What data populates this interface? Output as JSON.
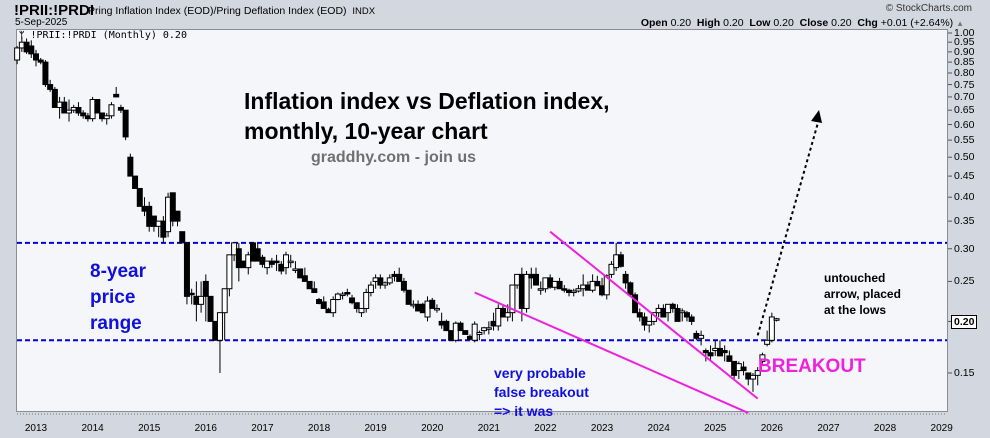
{
  "header": {
    "symbol": "!PRII:!PRDI",
    "name": "Pring Inflation Index (EOD)/Pring Deflation Index (EOD)",
    "exchange": "INDX",
    "date": "5-Sep-2025",
    "copyright": "© StockCharts.com",
    "ohlc": {
      "open_label": "Open",
      "open": "0.20",
      "high_label": "High",
      "high": "0.20",
      "low_label": "Low",
      "low": "0.20",
      "close_label": "Close",
      "close": "0.20",
      "chg_label": "Chg",
      "chg": "+0.01 (+2.64%)",
      "chg_icon": "up-triangle-icon"
    }
  },
  "legend": {
    "icon": "candlestick-icon",
    "text": "!PRII:!PRDI (Monthly) 0.20"
  },
  "annotations": {
    "title_line1": "Inflation index vs Deflation index,",
    "title_line2": "monthly, 10-year chart",
    "subtitle": "graddhy.com - join us",
    "range_label_1": "8-year",
    "range_label_2": "price",
    "range_label_3": "range",
    "false_breakout_1": "very probable",
    "false_breakout_2": "false breakout",
    "false_breakout_3": "=> it was",
    "breakout": "BREAKOUT",
    "arrow_note_1": "untouched",
    "arrow_note_2": "arrow, placed",
    "arrow_note_3": "at the lows"
  },
  "colors": {
    "range_line": "#0000dd",
    "range_text": "#1010dd",
    "wedge": "#ee22dd",
    "breakout_text": "#ee22dd",
    "arrow": "#000000",
    "subtitle": "#707070"
  },
  "price_tag": "0.20",
  "chart_data": {
    "type": "candlestick",
    "title": "Inflation index vs Deflation index, monthly, 10-year chart",
    "series_name": "!PRII:!PRDI (Monthly)",
    "scale": "log",
    "ylim": [
      0.14,
      1.0
    ],
    "y_ticks": [
      "1.00",
      "0.95",
      "0.90",
      "0.85",
      "0.80",
      "0.75",
      "0.70",
      "0.65",
      "0.60",
      "0.55",
      "0.50",
      "0.45",
      "0.40",
      "0.35",
      "0.30",
      "0.25",
      "0.20",
      "0.15"
    ],
    "x_ticks": [
      "2013",
      "2014",
      "2015",
      "2016",
      "2017",
      "2018",
      "2019",
      "2020",
      "2021",
      "2022",
      "2023",
      "2024",
      "2025",
      "2026",
      "2027",
      "2028",
      "2029"
    ],
    "horizontal_lines": [
      0.31,
      0.18
    ],
    "wedge_upper": [
      [
        "2022-02",
        0.33
      ],
      [
        "2025-10",
        0.13
      ]
    ],
    "wedge_lower": [
      [
        "2020-10",
        0.235
      ],
      [
        "2025-08",
        0.12
      ]
    ],
    "projection_arrow": [
      [
        "2025-10",
        0.185
      ],
      [
        "2026-11",
        0.64
      ]
    ],
    "last_value": 0.2,
    "candles_start": "2012-09",
    "candles": [
      [
        0.86,
        0.93,
        0.84,
        0.92
      ],
      [
        0.92,
        0.98,
        0.9,
        0.95
      ],
      [
        0.95,
        0.97,
        0.89,
        0.9
      ],
      [
        0.93,
        0.96,
        0.87,
        0.89
      ],
      [
        0.89,
        0.91,
        0.83,
        0.86
      ],
      [
        0.86,
        0.87,
        0.84,
        0.85
      ],
      [
        0.85,
        0.86,
        0.74,
        0.75
      ],
      [
        0.75,
        0.77,
        0.72,
        0.73
      ],
      [
        0.73,
        0.74,
        0.66,
        0.66
      ],
      [
        0.66,
        0.7,
        0.62,
        0.68
      ],
      [
        0.68,
        0.7,
        0.64,
        0.64
      ],
      [
        0.64,
        0.69,
        0.61,
        0.65
      ],
      [
        0.65,
        0.67,
        0.64,
        0.66
      ],
      [
        0.66,
        0.68,
        0.63,
        0.64
      ],
      [
        0.64,
        0.65,
        0.62,
        0.63
      ],
      [
        0.63,
        0.64,
        0.61,
        0.62
      ],
      [
        0.62,
        0.7,
        0.61,
        0.69
      ],
      [
        0.69,
        0.69,
        0.64,
        0.64
      ],
      [
        0.64,
        0.64,
        0.61,
        0.62
      ],
      [
        0.62,
        0.64,
        0.6,
        0.63
      ],
      [
        0.63,
        0.68,
        0.62,
        0.67
      ],
      [
        0.71,
        0.74,
        0.7,
        0.7
      ],
      [
        0.66,
        0.67,
        0.64,
        0.65
      ],
      [
        0.65,
        0.65,
        0.55,
        0.56
      ],
      [
        0.5,
        0.51,
        0.45,
        0.45
      ],
      [
        0.45,
        0.45,
        0.42,
        0.42
      ],
      [
        0.42,
        0.42,
        0.38,
        0.38
      ],
      [
        0.38,
        0.4,
        0.36,
        0.37
      ],
      [
        0.38,
        0.39,
        0.33,
        0.34
      ],
      [
        0.36,
        0.36,
        0.33,
        0.34
      ],
      [
        0.34,
        0.35,
        0.32,
        0.35
      ],
      [
        0.35,
        0.36,
        0.31,
        0.32
      ],
      [
        0.33,
        0.41,
        0.32,
        0.4
      ],
      [
        0.41,
        0.41,
        0.34,
        0.35
      ],
      [
        0.37,
        0.37,
        0.34,
        0.35
      ],
      [
        0.33,
        0.33,
        0.31,
        0.31
      ],
      [
        0.31,
        0.31,
        0.22,
        0.23
      ],
      [
        0.234,
        0.24,
        0.22,
        0.233
      ],
      [
        0.23,
        0.25,
        0.2,
        0.22
      ],
      [
        0.22,
        0.25,
        0.21,
        0.23
      ],
      [
        0.25,
        0.26,
        0.2,
        0.23
      ],
      [
        0.23,
        0.23,
        0.2,
        0.2
      ],
      [
        0.2,
        0.2,
        0.18,
        0.18
      ],
      [
        0.18,
        0.21,
        0.15,
        0.21
      ],
      [
        0.21,
        0.24,
        0.18,
        0.24
      ],
      [
        0.24,
        0.29,
        0.23,
        0.29
      ],
      [
        0.29,
        0.31,
        0.28,
        0.31
      ],
      [
        0.3,
        0.31,
        0.25,
        0.27
      ],
      [
        0.28,
        0.28,
        0.27,
        0.27
      ],
      [
        0.27,
        0.295,
        0.26,
        0.29
      ],
      [
        0.31,
        0.31,
        0.28,
        0.28
      ],
      [
        0.3,
        0.31,
        0.28,
        0.28
      ],
      [
        0.286,
        0.29,
        0.27,
        0.275
      ],
      [
        0.27,
        0.28,
        0.26,
        0.28
      ],
      [
        0.28,
        0.285,
        0.27,
        0.275
      ],
      [
        0.28,
        0.29,
        0.265,
        0.278
      ],
      [
        0.275,
        0.28,
        0.26,
        0.265
      ],
      [
        0.27,
        0.295,
        0.26,
        0.29
      ],
      [
        0.28,
        0.29,
        0.27,
        0.28
      ],
      [
        0.268,
        0.28,
        0.262,
        0.268
      ],
      [
        0.268,
        0.268,
        0.255,
        0.255
      ],
      [
        0.258,
        0.27,
        0.25,
        0.25
      ],
      [
        0.25,
        0.25,
        0.24,
        0.24
      ],
      [
        0.24,
        0.25,
        0.235,
        0.235
      ],
      [
        0.226,
        0.228,
        0.22,
        0.221
      ],
      [
        0.223,
        0.23,
        0.215,
        0.215
      ],
      [
        0.214,
        0.216,
        0.21,
        0.21
      ],
      [
        0.21,
        0.23,
        0.205,
        0.226
      ],
      [
        0.226,
        0.235,
        0.225,
        0.233
      ],
      [
        0.233,
        0.236,
        0.226,
        0.233
      ],
      [
        0.235,
        0.24,
        0.23,
        0.234
      ],
      [
        0.228,
        0.232,
        0.22,
        0.222
      ],
      [
        0.222,
        0.222,
        0.21,
        0.215
      ],
      [
        0.21,
        0.215,
        0.205,
        0.215
      ],
      [
        0.215,
        0.24,
        0.21,
        0.235
      ],
      [
        0.235,
        0.25,
        0.23,
        0.245
      ],
      [
        0.25,
        0.26,
        0.24,
        0.255
      ],
      [
        0.255,
        0.26,
        0.24,
        0.245
      ],
      [
        0.245,
        0.25,
        0.24,
        0.248
      ],
      [
        0.248,
        0.26,
        0.245,
        0.255
      ],
      [
        0.26,
        0.265,
        0.25,
        0.257
      ],
      [
        0.26,
        0.27,
        0.25,
        0.25
      ],
      [
        0.25,
        0.255,
        0.235,
        0.238
      ],
      [
        0.238,
        0.238,
        0.22,
        0.22
      ],
      [
        0.22,
        0.225,
        0.215,
        0.22
      ],
      [
        0.22,
        0.225,
        0.212,
        0.212
      ],
      [
        0.22,
        0.222,
        0.21,
        0.21
      ],
      [
        0.205,
        0.23,
        0.2,
        0.224
      ],
      [
        0.225,
        0.228,
        0.215,
        0.215
      ],
      [
        0.215,
        0.22,
        0.21,
        0.215
      ],
      [
        0.2,
        0.21,
        0.192,
        0.196
      ],
      [
        0.2,
        0.202,
        0.19,
        0.19
      ],
      [
        0.19,
        0.19,
        0.18,
        0.18
      ],
      [
        0.18,
        0.2,
        0.178,
        0.198
      ],
      [
        0.198,
        0.2,
        0.19,
        0.19
      ],
      [
        0.19,
        0.19,
        0.186,
        0.186
      ],
      [
        0.184,
        0.186,
        0.18,
        0.181
      ],
      [
        0.18,
        0.2,
        0.178,
        0.197
      ],
      [
        0.186,
        0.19,
        0.18,
        0.188
      ],
      [
        0.19,
        0.194,
        0.186,
        0.193
      ],
      [
        0.193,
        0.2,
        0.186,
        0.193
      ],
      [
        0.2,
        0.21,
        0.19,
        0.195
      ],
      [
        0.195,
        0.22,
        0.19,
        0.215
      ],
      [
        0.215,
        0.22,
        0.205,
        0.205
      ],
      [
        0.205,
        0.22,
        0.2,
        0.21
      ],
      [
        0.21,
        0.245,
        0.2,
        0.245
      ],
      [
        0.245,
        0.26,
        0.24,
        0.26
      ],
      [
        0.26,
        0.27,
        0.2,
        0.215
      ],
      [
        0.215,
        0.265,
        0.21,
        0.26
      ],
      [
        0.26,
        0.27,
        0.24,
        0.255
      ],
      [
        0.26,
        0.27,
        0.245,
        0.245
      ],
      [
        0.24,
        0.25,
        0.232,
        0.24
      ],
      [
        0.24,
        0.255,
        0.235,
        0.255
      ],
      [
        0.255,
        0.26,
        0.24,
        0.242
      ],
      [
        0.242,
        0.25,
        0.238,
        0.25
      ],
      [
        0.25,
        0.255,
        0.24,
        0.24
      ],
      [
        0.24,
        0.245,
        0.235,
        0.238
      ],
      [
        0.238,
        0.24,
        0.23,
        0.235
      ],
      [
        0.235,
        0.24,
        0.23,
        0.237
      ],
      [
        0.237,
        0.245,
        0.235,
        0.24
      ],
      [
        0.24,
        0.26,
        0.23,
        0.245
      ],
      [
        0.245,
        0.25,
        0.238,
        0.238
      ],
      [
        0.238,
        0.26,
        0.235,
        0.25
      ],
      [
        0.25,
        0.258,
        0.244,
        0.244
      ],
      [
        0.244,
        0.255,
        0.23,
        0.232
      ],
      [
        0.232,
        0.26,
        0.226,
        0.258
      ],
      [
        0.26,
        0.28,
        0.255,
        0.275
      ],
      [
        0.27,
        0.31,
        0.265,
        0.29
      ],
      [
        0.29,
        0.295,
        0.27,
        0.272
      ],
      [
        0.26,
        0.265,
        0.24,
        0.248
      ],
      [
        0.248,
        0.25,
        0.23,
        0.232
      ],
      [
        0.232,
        0.235,
        0.21,
        0.21
      ],
      [
        0.21,
        0.215,
        0.2,
        0.205
      ],
      [
        0.205,
        0.21,
        0.19,
        0.196
      ],
      [
        0.196,
        0.2,
        0.188,
        0.2
      ],
      [
        0.2,
        0.21,
        0.196,
        0.21
      ],
      [
        0.21,
        0.22,
        0.205,
        0.215
      ],
      [
        0.215,
        0.22,
        0.205,
        0.205
      ],
      [
        0.21,
        0.22,
        0.2,
        0.22
      ],
      [
        0.22,
        0.222,
        0.21,
        0.215
      ],
      [
        0.215,
        0.22,
        0.2,
        0.2
      ],
      [
        0.21,
        0.215,
        0.2,
        0.212
      ],
      [
        0.21,
        0.212,
        0.2,
        0.205
      ],
      [
        0.205,
        0.208,
        0.196,
        0.2
      ],
      [
        0.187,
        0.19,
        0.18,
        0.182
      ],
      [
        0.182,
        0.19,
        0.175,
        0.185
      ],
      [
        0.17,
        0.172,
        0.16,
        0.168
      ],
      [
        0.168,
        0.175,
        0.16,
        0.165
      ],
      [
        0.17,
        0.18,
        0.165,
        0.172
      ],
      [
        0.172,
        0.18,
        0.165,
        0.165
      ],
      [
        0.17,
        0.175,
        0.16,
        0.168
      ],
      [
        0.165,
        0.17,
        0.16,
        0.16
      ],
      [
        0.16,
        0.16,
        0.145,
        0.148
      ],
      [
        0.152,
        0.16,
        0.145,
        0.158
      ],
      [
        0.155,
        0.16,
        0.148,
        0.152
      ],
      [
        0.15,
        0.15,
        0.14,
        0.145
      ],
      [
        0.145,
        0.15,
        0.135,
        0.148
      ],
      [
        0.148,
        0.155,
        0.14,
        0.152
      ],
      [
        0.16,
        0.168,
        0.158,
        0.166
      ],
      [
        0.176,
        0.19,
        0.174,
        0.18
      ],
      [
        0.18,
        0.21,
        0.178,
        0.205
      ],
      [
        0.202,
        0.204,
        0.2,
        0.203
      ]
    ]
  }
}
